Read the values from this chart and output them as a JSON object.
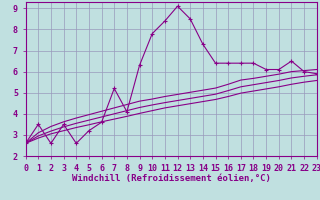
{
  "xlabel": "Windchill (Refroidissement éolien,°C)",
  "background_color": "#c0e0e0",
  "grid_color": "#9999bb",
  "line_color": "#880088",
  "x_data": [
    0,
    1,
    2,
    3,
    4,
    5,
    6,
    7,
    8,
    9,
    10,
    11,
    12,
    13,
    14,
    15,
    16,
    17,
    18,
    19,
    20,
    21,
    22,
    23
  ],
  "y_main": [
    2.6,
    3.5,
    2.6,
    3.5,
    2.6,
    3.2,
    3.6,
    5.2,
    4.1,
    6.3,
    7.8,
    8.4,
    9.1,
    8.5,
    7.3,
    6.4,
    6.4,
    6.4,
    6.4,
    6.1,
    6.1,
    6.5,
    6.0,
    5.9
  ],
  "y_line1": [
    2.6,
    2.85,
    3.05,
    3.2,
    3.35,
    3.48,
    3.62,
    3.75,
    3.88,
    4.02,
    4.15,
    4.28,
    4.38,
    4.48,
    4.58,
    4.68,
    4.82,
    4.98,
    5.08,
    5.18,
    5.28,
    5.4,
    5.5,
    5.58
  ],
  "y_line2": [
    2.6,
    2.95,
    3.18,
    3.38,
    3.55,
    3.7,
    3.85,
    4.0,
    4.15,
    4.3,
    4.42,
    4.53,
    4.63,
    4.73,
    4.83,
    4.93,
    5.1,
    5.28,
    5.38,
    5.48,
    5.58,
    5.7,
    5.78,
    5.85
  ],
  "y_line3": [
    2.6,
    3.1,
    3.4,
    3.62,
    3.8,
    3.96,
    4.12,
    4.28,
    4.44,
    4.6,
    4.7,
    4.82,
    4.92,
    5.02,
    5.12,
    5.22,
    5.4,
    5.6,
    5.68,
    5.78,
    5.88,
    6.0,
    6.05,
    6.1
  ],
  "xlim": [
    0,
    23
  ],
  "ylim": [
    2.0,
    9.3
  ],
  "xticks": [
    0,
    1,
    2,
    3,
    4,
    5,
    6,
    7,
    8,
    9,
    10,
    11,
    12,
    13,
    14,
    15,
    16,
    17,
    18,
    19,
    20,
    21,
    22,
    23
  ],
  "yticks": [
    2,
    3,
    4,
    5,
    6,
    7,
    8,
    9
  ],
  "xlabel_fontsize": 6.5,
  "tick_fontsize": 6.0,
  "font_name": "monospace"
}
